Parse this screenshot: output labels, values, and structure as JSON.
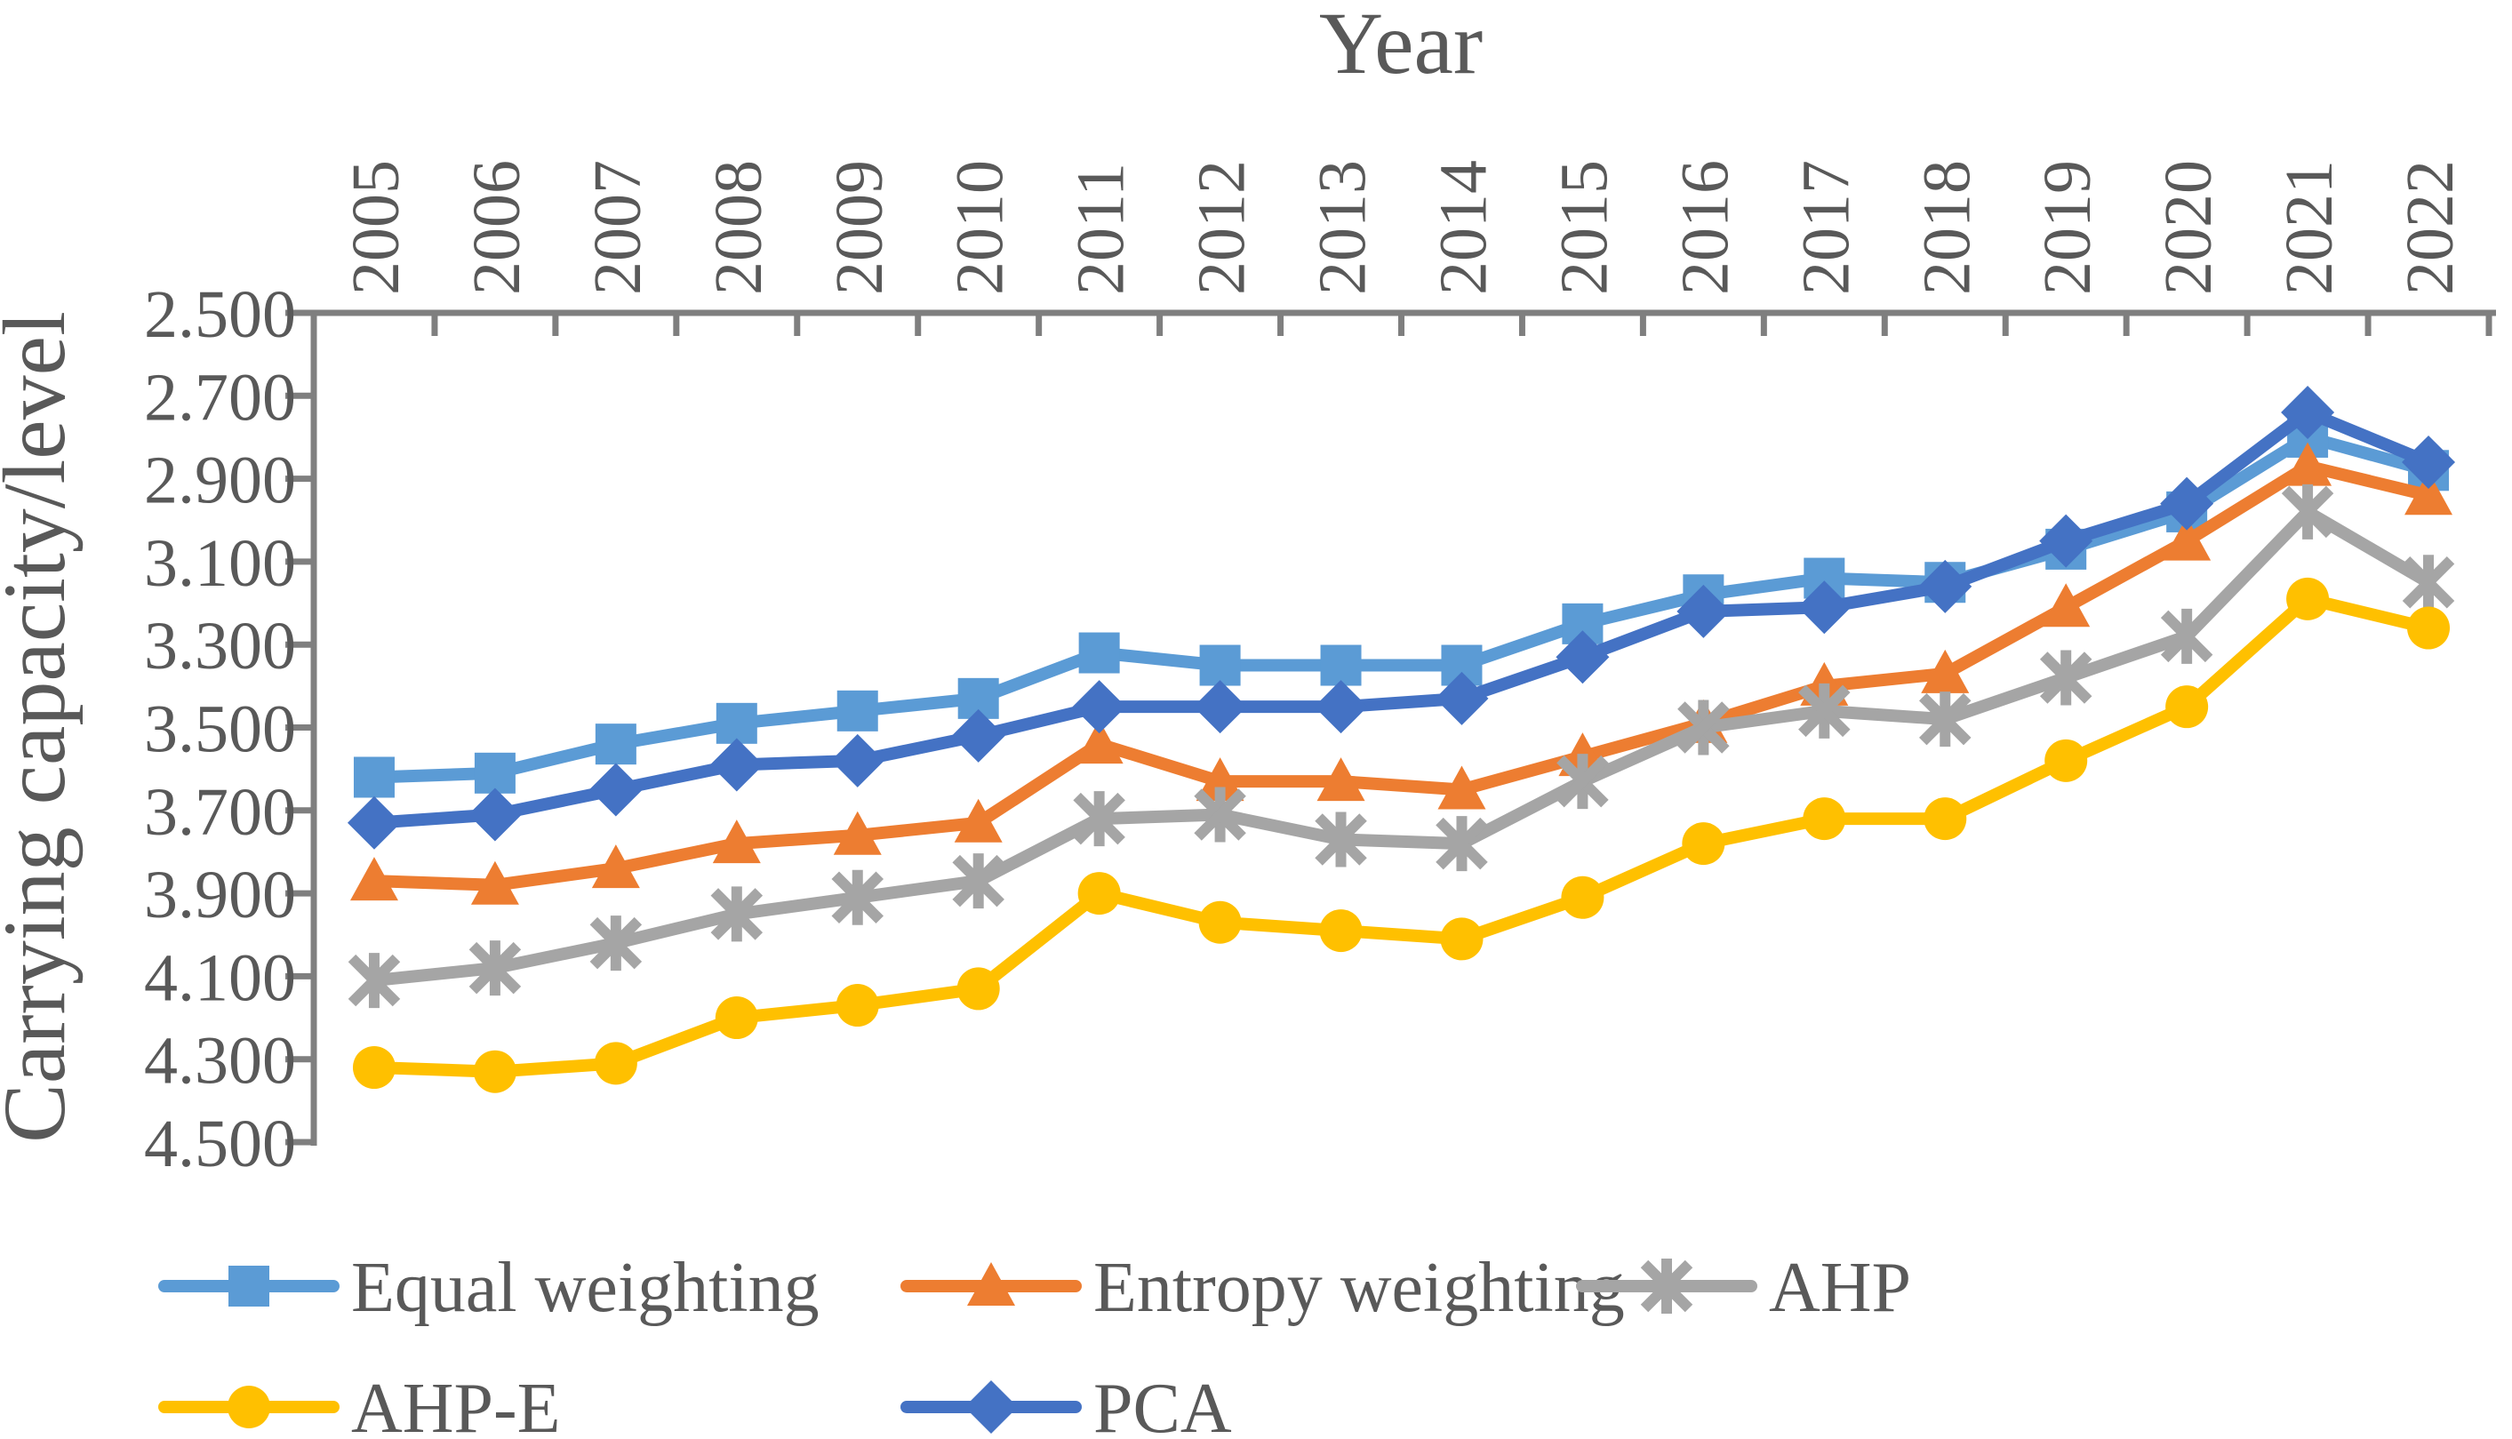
{
  "figure": {
    "background": "#FFFFFF",
    "text_color": "#595959",
    "axis_color": "#7F7F7F"
  },
  "chart_data": {
    "type": "line",
    "title": "",
    "xlabel": "Year",
    "ylabel": "Carrying capacity/level",
    "x": [
      "2005",
      "2006",
      "2007",
      "2008",
      "2009",
      "2010",
      "2011",
      "2012",
      "2013",
      "2014",
      "2015",
      "2016",
      "2017",
      "2018",
      "2019",
      "2020",
      "2021",
      "2022"
    ],
    "y_axis": {
      "min": 2.5,
      "max": 4.5,
      "step": 0.2,
      "reversed": true,
      "tick_labels": [
        "2.500",
        "2.700",
        "2.900",
        "3.100",
        "3.300",
        "3.500",
        "3.700",
        "3.900",
        "4.100",
        "4.300",
        "4.500"
      ]
    },
    "grid": "off",
    "legend_position": "bottom",
    "series": [
      {
        "name": "Equal weighting",
        "color": "#5B9BD5",
        "marker": "square",
        "values": [
          3.62,
          3.61,
          3.54,
          3.49,
          3.46,
          3.43,
          3.32,
          3.35,
          3.35,
          3.35,
          3.25,
          3.18,
          3.14,
          3.15,
          3.07,
          2.98,
          2.8,
          2.88
        ]
      },
      {
        "name": "Entropy weighting",
        "color": "#ED7D31",
        "marker": "triangle",
        "values": [
          3.87,
          3.88,
          3.84,
          3.78,
          3.76,
          3.73,
          3.54,
          3.63,
          3.63,
          3.65,
          3.57,
          3.49,
          3.4,
          3.37,
          3.21,
          3.05,
          2.87,
          2.94
        ]
      },
      {
        "name": "AHP",
        "color": "#A5A5A5",
        "marker": "asterisk",
        "values": [
          4.11,
          4.08,
          4.02,
          3.95,
          3.91,
          3.87,
          3.72,
          3.71,
          3.77,
          3.78,
          3.63,
          3.5,
          3.46,
          3.48,
          3.38,
          3.28,
          2.98,
          3.15
        ]
      },
      {
        "name": "AHP-E",
        "color": "#FFC000",
        "marker": "circle",
        "values": [
          4.32,
          4.33,
          4.31,
          4.2,
          4.17,
          4.13,
          3.9,
          3.97,
          3.99,
          4.01,
          3.91,
          3.78,
          3.72,
          3.72,
          3.58,
          3.45,
          3.19,
          3.26
        ]
      },
      {
        "name": "PCA",
        "color": "#4472C4",
        "marker": "diamond",
        "values": [
          3.73,
          3.71,
          3.65,
          3.59,
          3.58,
          3.52,
          3.45,
          3.45,
          3.45,
          3.43,
          3.33,
          3.22,
          3.21,
          3.16,
          3.05,
          2.96,
          2.74,
          2.86
        ]
      }
    ]
  }
}
